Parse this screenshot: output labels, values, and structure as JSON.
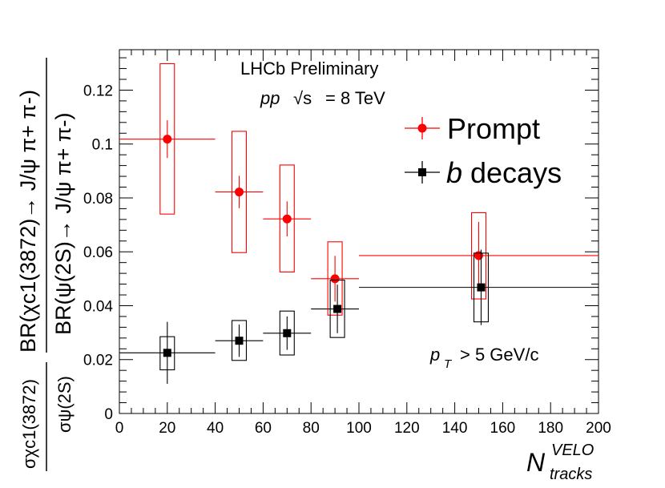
{
  "chart_data": {
    "type": "scatter",
    "xlim": [
      0,
      200
    ],
    "ylim": [
      0,
      0.135
    ],
    "x_ticks": [
      0,
      20,
      40,
      60,
      80,
      100,
      120,
      140,
      160,
      180,
      200
    ],
    "y_ticks": [
      0,
      0.02,
      0.04,
      0.06,
      0.08,
      0.1,
      0.12
    ],
    "x_tick_labels": [
      "0",
      "20",
      "40",
      "60",
      "80",
      "100",
      "120",
      "140",
      "160",
      "180",
      "200"
    ],
    "y_tick_labels": [
      "0",
      "0.02",
      "0.04",
      "0.06",
      "0.08",
      "0.1",
      "0.12"
    ],
    "xlabel": {
      "main": "N",
      "sup": "VELO",
      "sub": "tracks"
    },
    "ylabel_top": "BR(χc1(3872)→ J/ψ π+ π-)",
    "ylabel_bottom": "BR(ψ(2S)→ J/ψ π+ π-)",
    "ylabel_sigma_top": "σχc1(3872)",
    "ylabel_sigma_bottom": "σψ(2S)",
    "annotations": {
      "experiment": "LHCb Preliminary",
      "energy_pp": "pp",
      "energy_sqrt": "√s",
      "energy_value": "= 8 TeV",
      "pt_cut_p": "p",
      "pt_cut_sub": "T",
      "pt_cut_value": "> 5 GeV/c"
    },
    "legend": [
      {
        "label": "Prompt",
        "marker": "circle",
        "color": "#ff0000"
      },
      {
        "label_b": "b",
        "label_rest": "decays",
        "marker": "square",
        "color": "#000000"
      }
    ],
    "series": [
      {
        "name": "Prompt",
        "color": "#ff0000",
        "marker": "circle",
        "points": [
          {
            "x": 20,
            "xlo": 0,
            "xhi": 40,
            "y": 0.1018,
            "stat": 0.007,
            "syst_lo": 0.074,
            "syst_hi": 0.1298
          },
          {
            "x": 50,
            "xlo": 40,
            "xhi": 60,
            "y": 0.0822,
            "stat": 0.006,
            "syst_lo": 0.0597,
            "syst_hi": 0.1047
          },
          {
            "x": 70,
            "xlo": 60,
            "xhi": 80,
            "y": 0.0722,
            "stat": 0.0065,
            "syst_lo": 0.0525,
            "syst_hi": 0.0922
          },
          {
            "x": 90,
            "xlo": 80,
            "xhi": 100,
            "y": 0.05,
            "stat": 0.0085,
            "syst_lo": 0.0365,
            "syst_hi": 0.0637
          },
          {
            "x": 150,
            "xlo": 100,
            "xhi": 200,
            "y": 0.0586,
            "stat": 0.0125,
            "syst_lo": 0.0425,
            "syst_hi": 0.0745
          }
        ]
      },
      {
        "name": "b decays",
        "color": "#000000",
        "marker": "square",
        "points": [
          {
            "x": 20,
            "xlo": 0,
            "xhi": 40,
            "y": 0.0225,
            "stat": 0.0115,
            "syst_lo": 0.0162,
            "syst_hi": 0.0285
          },
          {
            "x": 50,
            "xlo": 40,
            "xhi": 60,
            "y": 0.027,
            "stat": 0.006,
            "syst_lo": 0.0197,
            "syst_hi": 0.0345
          },
          {
            "x": 70,
            "xlo": 60,
            "xhi": 80,
            "y": 0.0298,
            "stat": 0.0062,
            "syst_lo": 0.0217,
            "syst_hi": 0.038
          },
          {
            "x": 91,
            "xlo": 80,
            "xhi": 100,
            "y": 0.0388,
            "stat": 0.009,
            "syst_lo": 0.0282,
            "syst_hi": 0.0495
          },
          {
            "x": 151,
            "xlo": 100,
            "xhi": 200,
            "y": 0.0468,
            "stat": 0.014,
            "syst_lo": 0.034,
            "syst_hi": 0.0595
          }
        ]
      }
    ]
  }
}
